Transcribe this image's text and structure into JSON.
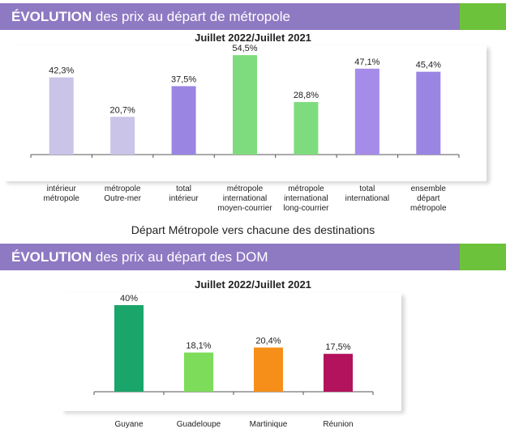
{
  "section1": {
    "title_bold": "ÉVOLUTION",
    "title_rest": " des prix au départ de métropole",
    "subtitle": "Juillet 2022/Juillet 2021"
  },
  "caption": "Départ Métropole vers chacune des destinations",
  "section2": {
    "title_bold": "ÉVOLUTION",
    "title_rest": " des prix au départ des DOM",
    "subtitle": "Juillet 2022/Juillet 2021"
  },
  "colors": {
    "banner": "#8e79c3",
    "accent": "#6cc23a"
  },
  "chart_data": [
    {
      "type": "bar",
      "title": "Juillet 2022/Juillet 2021",
      "categories": [
        "intérieur\nmétropole",
        "métropole\nOutre-mer",
        "total\nintérieur",
        "métropole\ninternational\nmoyen-courrier",
        "métropole\ninternational\nlong-courrier",
        "total\ninternational",
        "ensemble\ndépart\nmétropole"
      ],
      "values": [
        42.3,
        20.7,
        37.5,
        54.5,
        28.8,
        47.1,
        45.4
      ],
      "labels": [
        "42,3%",
        "20,7%",
        "37,5%",
        "54,5%",
        "28,8%",
        "47,1%",
        "45,4%"
      ],
      "colors": [
        "#cac4e8",
        "#cac4e8",
        "#9a85e3",
        "#7fdc7e",
        "#7fdc7e",
        "#a58ce9",
        "#9a85e3"
      ],
      "ylim": [
        0,
        55
      ],
      "grid": false
    },
    {
      "type": "bar",
      "title": "Juillet 2022/Juillet 2021",
      "categories": [
        "Guyane",
        "Guadeloupe",
        "Martinique",
        "Réunion"
      ],
      "values": [
        40,
        18.1,
        20.4,
        17.5
      ],
      "labels": [
        "40%",
        "18,1%",
        "20,4%",
        "17,5%"
      ],
      "colors": [
        "#1aa56b",
        "#7ddc5a",
        "#f68f1a",
        "#b3125c"
      ],
      "ylim": [
        0,
        40
      ],
      "grid": false
    }
  ]
}
